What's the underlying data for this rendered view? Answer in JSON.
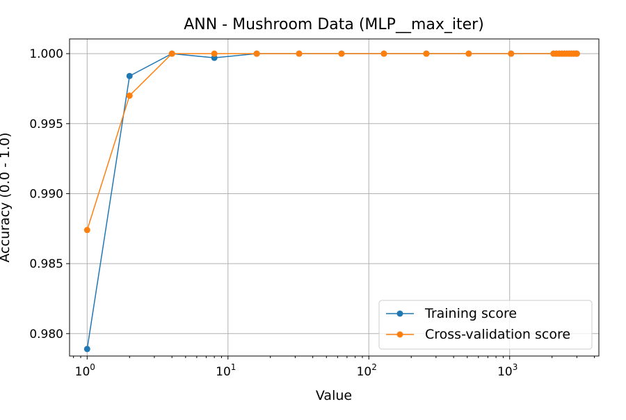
{
  "chart_data": {
    "type": "line",
    "title": "ANN - Mushroom Data (MLP__max_iter)",
    "xlabel": "Value",
    "ylabel": "Accuracy (0.0 - 1.0)",
    "xscale": "log",
    "xlim": [
      0.75,
      4300
    ],
    "ylim": [
      0.9784,
      1.00105
    ],
    "grid": true,
    "legend_position": "lower-right",
    "x_ticks": [
      {
        "value": 1,
        "base": "10",
        "exp": "0"
      },
      {
        "value": 10,
        "base": "10",
        "exp": "1"
      },
      {
        "value": 100,
        "base": "10",
        "exp": "2"
      },
      {
        "value": 1000,
        "base": "10",
        "exp": "3"
      }
    ],
    "y_ticks": [
      {
        "value": 0.98,
        "label": "0.980"
      },
      {
        "value": 0.985,
        "label": "0.985"
      },
      {
        "value": 0.99,
        "label": "0.990"
      },
      {
        "value": 0.995,
        "label": "0.995"
      },
      {
        "value": 1.0,
        "label": "1.000"
      }
    ],
    "x": [
      1,
      2,
      4,
      8,
      16,
      32,
      64,
      128,
      256,
      512,
      1024,
      2048,
      2150,
      2250,
      2350,
      2450,
      2550,
      2650,
      2750,
      2850,
      2950,
      3000
    ],
    "series": [
      {
        "name": "Training score",
        "color": "#1f77b4",
        "values": [
          0.9789,
          0.9984,
          1.0,
          0.9997,
          1.0,
          1.0,
          1.0,
          1.0,
          1.0,
          1.0,
          1.0,
          1.0,
          1.0,
          1.0,
          1.0,
          1.0,
          1.0,
          1.0,
          1.0,
          1.0,
          1.0,
          1.0
        ]
      },
      {
        "name": "Cross-validation score",
        "color": "#ff7f0e",
        "values": [
          0.9874,
          0.997,
          1.0,
          1.0,
          1.0,
          1.0,
          1.0,
          1.0,
          1.0,
          1.0,
          1.0,
          1.0,
          1.0,
          1.0,
          1.0,
          1.0,
          1.0,
          1.0,
          1.0,
          1.0,
          1.0,
          1.0
        ]
      }
    ]
  }
}
